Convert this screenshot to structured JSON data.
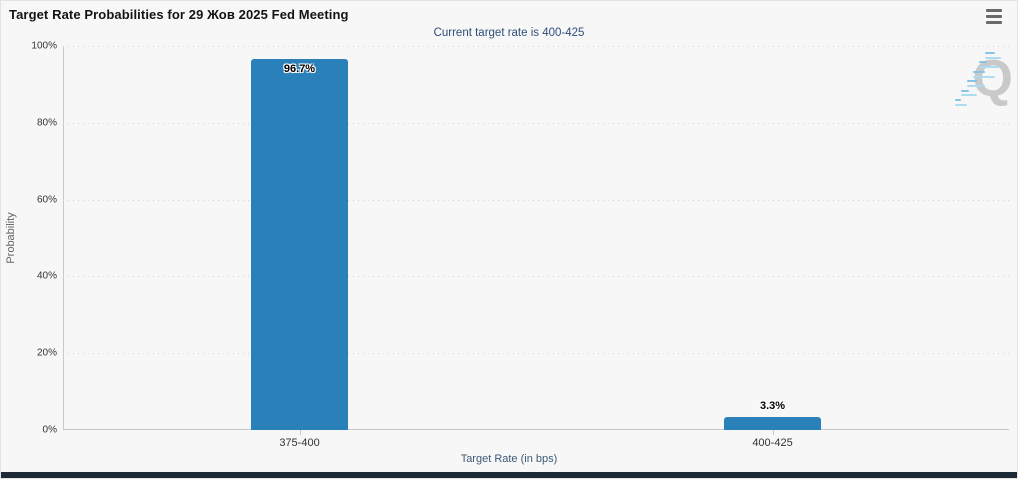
{
  "colors": {
    "background": "#f7f7f7",
    "bar": "#2a80b9",
    "subtitle_text": "#2f4d7a",
    "tick_text": "#333333",
    "y_axis_title_text": "#666666",
    "x_axis_title_text": "#3c5a77",
    "grid": "#d4d4d4",
    "watermark_dash_light": "#aadbf0",
    "watermark_dash_dark": "#7fc2e4",
    "footer_bar": "#1d2a36"
  },
  "header": {
    "menu_icon": "hamburger-menu-icon"
  },
  "chart_data": {
    "type": "bar",
    "title": "Target Rate Probabilities for 29 Жов 2025 Fed Meeting",
    "subtitle": "Current target rate is 400-425",
    "categories": [
      "375-400",
      "400-425"
    ],
    "values": [
      96.7,
      3.3
    ],
    "value_labels": [
      "96.7%",
      "3.3%"
    ],
    "xlabel": "Target Rate (in bps)",
    "ylabel": "Probability",
    "ylim": [
      0,
      100
    ],
    "ytick_labels": [
      "100%",
      "80%",
      "60%",
      "40%",
      "20%",
      "0%"
    ],
    "grid": "horizontal-dotted",
    "legend": "none",
    "bar_color": "#2a80b9",
    "watermark_letter": "Q"
  }
}
